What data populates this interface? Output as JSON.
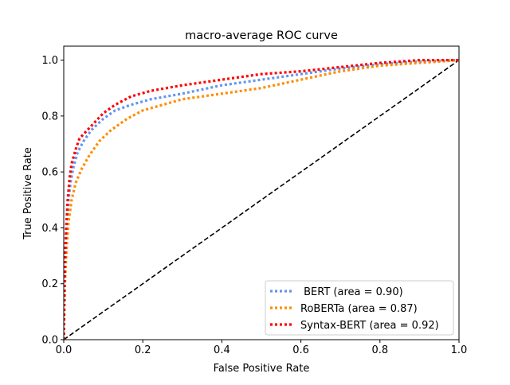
{
  "chart_data": {
    "type": "line",
    "title": "macro-average ROC curve",
    "xlabel": "False Positive Rate",
    "ylabel": "True Positive Rate",
    "xlim": [
      0,
      1
    ],
    "ylim": [
      0,
      1.05
    ],
    "xticks": [
      0,
      0.2,
      0.4,
      0.6,
      0.8,
      1.0
    ],
    "xtick_labels": [
      "0.0",
      "0.2",
      "0.4",
      "0.6",
      "0.8",
      "1.0"
    ],
    "yticks": [
      0,
      0.2,
      0.4,
      0.6,
      0.8,
      1.0
    ],
    "ytick_labels": [
      "0.0",
      "0.2",
      "0.4",
      "0.6",
      "0.8",
      "1.0"
    ],
    "grid": false,
    "legend_position": "lower-right",
    "diagonal": {
      "x": [
        0,
        1
      ],
      "y": [
        0,
        1
      ],
      "style": "dashed",
      "color": "#000000"
    },
    "series": [
      {
        "name": " BERT (area = 0.90)",
        "color": "#6495ED",
        "style": "dotted",
        "x": [
          0,
          0.002,
          0.005,
          0.008,
          0.012,
          0.018,
          0.025,
          0.035,
          0.05,
          0.07,
          0.1,
          0.13,
          0.17,
          0.22,
          0.3,
          0.4,
          0.5,
          0.6,
          0.7,
          0.8,
          0.9,
          1.0
        ],
        "y": [
          0,
          0.2,
          0.32,
          0.42,
          0.5,
          0.57,
          0.62,
          0.67,
          0.71,
          0.75,
          0.79,
          0.82,
          0.84,
          0.86,
          0.88,
          0.91,
          0.93,
          0.95,
          0.97,
          0.985,
          0.995,
          1.0
        ]
      },
      {
        "name": "RoBERTa (area = 0.87)",
        "color": "#FF8C00",
        "style": "dotted",
        "x": [
          0,
          0.003,
          0.007,
          0.012,
          0.02,
          0.03,
          0.045,
          0.065,
          0.09,
          0.12,
          0.16,
          0.2,
          0.25,
          0.3,
          0.4,
          0.5,
          0.6,
          0.7,
          0.8,
          0.9,
          1.0
        ],
        "y": [
          0,
          0.2,
          0.32,
          0.42,
          0.5,
          0.56,
          0.61,
          0.66,
          0.71,
          0.75,
          0.79,
          0.82,
          0.84,
          0.86,
          0.88,
          0.9,
          0.93,
          0.96,
          0.98,
          0.99,
          1.0
        ]
      },
      {
        "name": "Syntax-BERT (area = 0.92)",
        "color": "#FF0000",
        "style": "dotted",
        "x": [
          0,
          0.002,
          0.004,
          0.007,
          0.01,
          0.015,
          0.02,
          0.03,
          0.04,
          0.06,
          0.08,
          0.1,
          0.13,
          0.17,
          0.22,
          0.3,
          0.4,
          0.5,
          0.6,
          0.7,
          0.8,
          0.9,
          1.0
        ],
        "y": [
          0,
          0.2,
          0.32,
          0.42,
          0.5,
          0.58,
          0.63,
          0.68,
          0.72,
          0.75,
          0.78,
          0.81,
          0.84,
          0.87,
          0.89,
          0.91,
          0.93,
          0.95,
          0.96,
          0.975,
          0.99,
          1.0,
          1.0
        ]
      }
    ]
  }
}
